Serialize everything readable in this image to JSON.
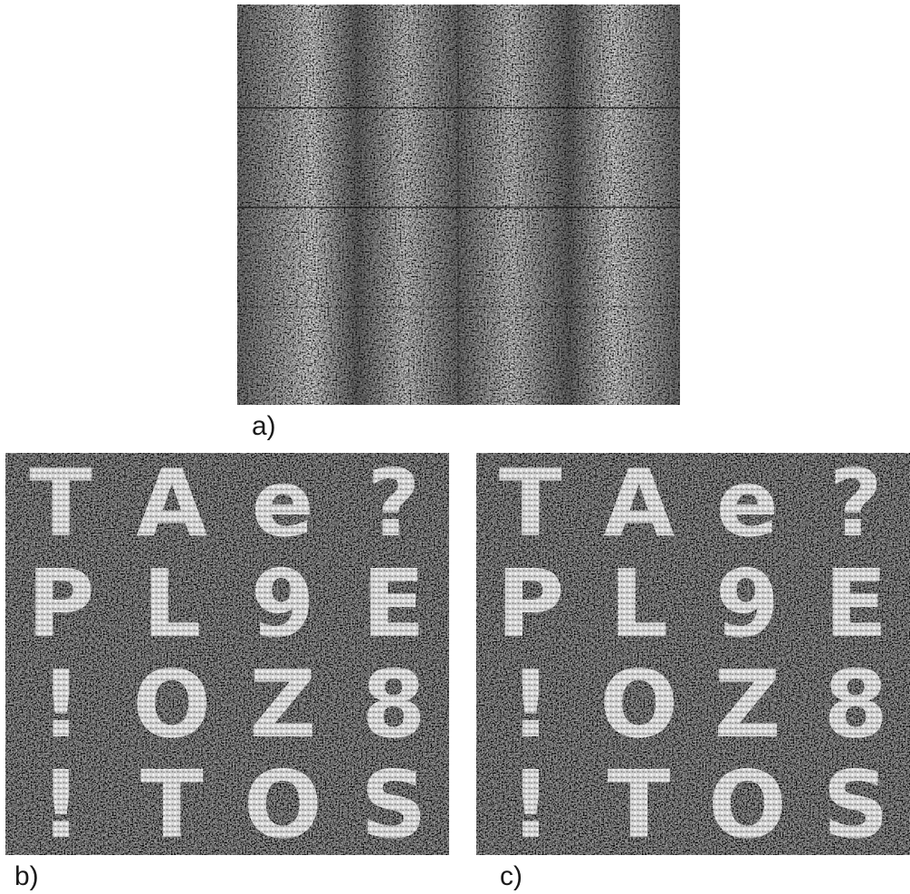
{
  "figure": {
    "panels": [
      {
        "id": "a",
        "label": "a)"
      },
      {
        "id": "b",
        "label": "b)",
        "grid_text": [
          [
            "T",
            "A",
            "e",
            "?"
          ],
          [
            "P",
            "L",
            "9",
            "E"
          ],
          [
            "!",
            "O",
            "Z",
            "8"
          ],
          [
            "!",
            "T",
            "O",
            "S"
          ]
        ]
      },
      {
        "id": "c",
        "label": "c)",
        "grid_text": [
          [
            "T",
            "A",
            "e",
            "?"
          ],
          [
            "P",
            "L",
            "9",
            "E"
          ],
          [
            "!",
            "O",
            "Z",
            "8"
          ],
          [
            "!",
            "T",
            "O",
            "S"
          ]
        ]
      }
    ],
    "colors": {
      "background": "#1c1c1c",
      "speckle": "#e8e8e8"
    }
  }
}
